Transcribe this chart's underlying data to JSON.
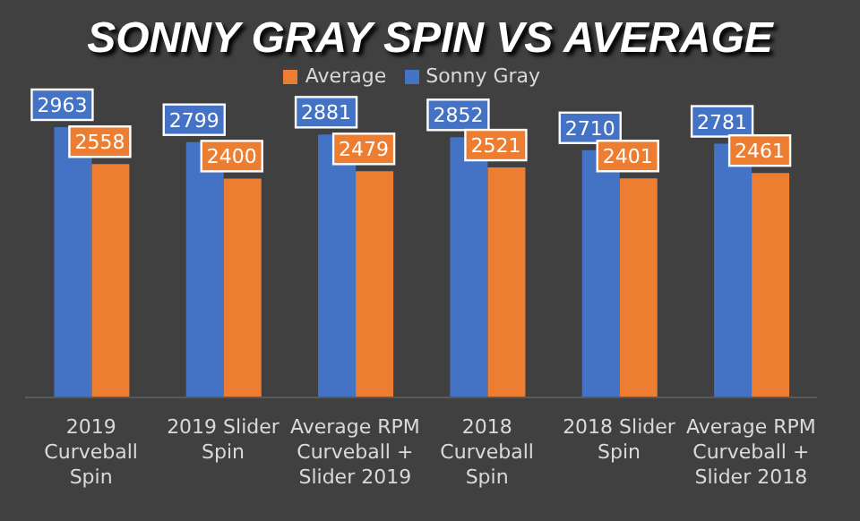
{
  "chart_data": {
    "type": "bar",
    "title": "SONNY GRAY SPIN VS AVERAGE",
    "categories": [
      "2019 Curveball Spin",
      "2019 Slider Spin",
      "Average RPM Curveball + Slider 2019",
      "2018 Curveball Spin",
      "2018 Slider Spin",
      "Average RPM Curveball + Slider 2018"
    ],
    "series": [
      {
        "name": "Sonny Gray",
        "color": "#4472c4",
        "values": [
          2963,
          2799,
          2881,
          2852,
          2710,
          2781
        ]
      },
      {
        "name": "Average",
        "color": "#ed7d31",
        "values": [
          2558,
          2400,
          2479,
          2521,
          2401,
          2461
        ]
      }
    ],
    "data_labels": true,
    "legend": "top",
    "grid": false
  }
}
